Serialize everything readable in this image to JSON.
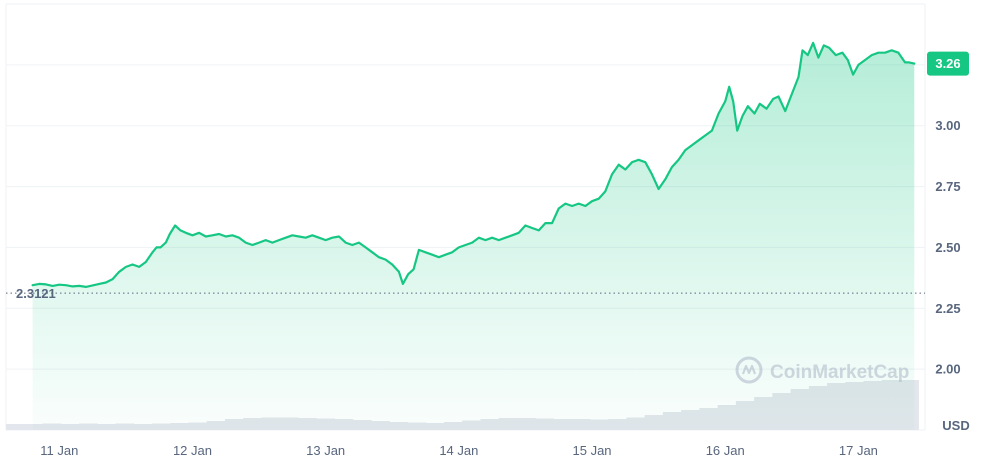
{
  "chart_data": {
    "type": "area",
    "unit_label": "USD",
    "current_value_label": "3.26",
    "reference_value_label": "2.3121",
    "reference_value": 2.3121,
    "watermark_text": "CoinMarketCap",
    "watermark_icon": "coinmarketcap-logo-icon",
    "x_ticks": [
      "11 Jan",
      "12 Jan",
      "13 Jan",
      "14 Jan",
      "15 Jan",
      "16 Jan",
      "17 Jan"
    ],
    "y_ticks": [
      {
        "value": 2.0,
        "label": "2.00"
      },
      {
        "value": 2.25,
        "label": "2.25"
      },
      {
        "value": 2.5,
        "label": "2.50"
      },
      {
        "value": 2.75,
        "label": "2.75"
      },
      {
        "value": 3.0,
        "label": "3.00"
      }
    ],
    "ylim": [
      1.75,
      3.5
    ],
    "xlim": [
      10.6,
      17.5
    ],
    "grid": true,
    "colors": {
      "line": "#16c784",
      "area_top": "#16c784",
      "volume": "#e3e6ec",
      "grid": "#eff2f5",
      "axis_text": "#58667e",
      "ref_line": "#58667e",
      "badge_text": "#ffffff"
    },
    "series": [
      {
        "values": [
          [
            10.8,
            2.345
          ],
          [
            10.85,
            2.35
          ],
          [
            10.9,
            2.348
          ],
          [
            10.95,
            2.342
          ],
          [
            11.0,
            2.347
          ],
          [
            11.05,
            2.345
          ],
          [
            11.1,
            2.34
          ],
          [
            11.15,
            2.342
          ],
          [
            11.2,
            2.338
          ],
          [
            11.25,
            2.344
          ],
          [
            11.3,
            2.35
          ],
          [
            11.35,
            2.356
          ],
          [
            11.4,
            2.37
          ],
          [
            11.45,
            2.4
          ],
          [
            11.5,
            2.42
          ],
          [
            11.55,
            2.43
          ],
          [
            11.6,
            2.42
          ],
          [
            11.65,
            2.44
          ],
          [
            11.7,
            2.48
          ],
          [
            11.73,
            2.5
          ],
          [
            11.76,
            2.5
          ],
          [
            11.8,
            2.52
          ],
          [
            11.83,
            2.555
          ],
          [
            11.87,
            2.59
          ],
          [
            11.91,
            2.57
          ],
          [
            11.95,
            2.56
          ],
          [
            12.0,
            2.55
          ],
          [
            12.05,
            2.56
          ],
          [
            12.1,
            2.545
          ],
          [
            12.15,
            2.55
          ],
          [
            12.2,
            2.555
          ],
          [
            12.25,
            2.545
          ],
          [
            12.3,
            2.55
          ],
          [
            12.35,
            2.54
          ],
          [
            12.4,
            2.52
          ],
          [
            12.45,
            2.51
          ],
          [
            12.5,
            2.52
          ],
          [
            12.55,
            2.53
          ],
          [
            12.6,
            2.52
          ],
          [
            12.65,
            2.53
          ],
          [
            12.7,
            2.54
          ],
          [
            12.75,
            2.55
          ],
          [
            12.8,
            2.545
          ],
          [
            12.85,
            2.54
          ],
          [
            12.9,
            2.55
          ],
          [
            12.95,
            2.54
          ],
          [
            13.0,
            2.53
          ],
          [
            13.05,
            2.54
          ],
          [
            13.1,
            2.545
          ],
          [
            13.15,
            2.52
          ],
          [
            13.2,
            2.51
          ],
          [
            13.25,
            2.52
          ],
          [
            13.3,
            2.5
          ],
          [
            13.35,
            2.48
          ],
          [
            13.4,
            2.46
          ],
          [
            13.45,
            2.45
          ],
          [
            13.5,
            2.43
          ],
          [
            13.55,
            2.4
          ],
          [
            13.58,
            2.35
          ],
          [
            13.62,
            2.39
          ],
          [
            13.66,
            2.41
          ],
          [
            13.7,
            2.49
          ],
          [
            13.75,
            2.48
          ],
          [
            13.8,
            2.47
          ],
          [
            13.85,
            2.46
          ],
          [
            13.9,
            2.47
          ],
          [
            13.95,
            2.48
          ],
          [
            14.0,
            2.5
          ],
          [
            14.05,
            2.51
          ],
          [
            14.1,
            2.52
          ],
          [
            14.15,
            2.54
          ],
          [
            14.2,
            2.53
          ],
          [
            14.25,
            2.54
          ],
          [
            14.3,
            2.53
          ],
          [
            14.35,
            2.54
          ],
          [
            14.4,
            2.55
          ],
          [
            14.45,
            2.56
          ],
          [
            14.5,
            2.59
          ],
          [
            14.55,
            2.58
          ],
          [
            14.6,
            2.57
          ],
          [
            14.65,
            2.6
          ],
          [
            14.7,
            2.6
          ],
          [
            14.75,
            2.66
          ],
          [
            14.8,
            2.68
          ],
          [
            14.85,
            2.67
          ],
          [
            14.9,
            2.68
          ],
          [
            14.95,
            2.67
          ],
          [
            15.0,
            2.69
          ],
          [
            15.05,
            2.7
          ],
          [
            15.1,
            2.73
          ],
          [
            15.15,
            2.8
          ],
          [
            15.2,
            2.84
          ],
          [
            15.25,
            2.82
          ],
          [
            15.3,
            2.85
          ],
          [
            15.35,
            2.86
          ],
          [
            15.4,
            2.85
          ],
          [
            15.45,
            2.8
          ],
          [
            15.5,
            2.74
          ],
          [
            15.55,
            2.78
          ],
          [
            15.6,
            2.83
          ],
          [
            15.65,
            2.86
          ],
          [
            15.7,
            2.9
          ],
          [
            15.75,
            2.92
          ],
          [
            15.8,
            2.94
          ],
          [
            15.85,
            2.96
          ],
          [
            15.9,
            2.98
          ],
          [
            15.95,
            3.05
          ],
          [
            16.0,
            3.1
          ],
          [
            16.03,
            3.16
          ],
          [
            16.06,
            3.1
          ],
          [
            16.09,
            2.98
          ],
          [
            16.13,
            3.04
          ],
          [
            16.17,
            3.08
          ],
          [
            16.22,
            3.05
          ],
          [
            16.26,
            3.09
          ],
          [
            16.31,
            3.07
          ],
          [
            16.36,
            3.11
          ],
          [
            16.4,
            3.12
          ],
          [
            16.45,
            3.06
          ],
          [
            16.5,
            3.13
          ],
          [
            16.55,
            3.2
          ],
          [
            16.58,
            3.31
          ],
          [
            16.62,
            3.29
          ],
          [
            16.66,
            3.34
          ],
          [
            16.7,
            3.28
          ],
          [
            16.74,
            3.33
          ],
          [
            16.78,
            3.32
          ],
          [
            16.83,
            3.29
          ],
          [
            16.88,
            3.3
          ],
          [
            16.92,
            3.27
          ],
          [
            16.96,
            3.21
          ],
          [
            17.0,
            3.25
          ],
          [
            17.05,
            3.27
          ],
          [
            17.1,
            3.29
          ],
          [
            17.15,
            3.3
          ],
          [
            17.2,
            3.3
          ],
          [
            17.25,
            3.31
          ],
          [
            17.3,
            3.3
          ],
          [
            17.35,
            3.26
          ],
          [
            17.38,
            3.26
          ],
          [
            17.42,
            3.255
          ]
        ]
      }
    ],
    "volume": [
      0.12,
      0.12,
      0.13,
      0.12,
      0.13,
      0.12,
      0.13,
      0.12,
      0.13,
      0.14,
      0.15,
      0.18,
      0.22,
      0.24,
      0.25,
      0.25,
      0.24,
      0.23,
      0.22,
      0.2,
      0.18,
      0.16,
      0.15,
      0.14,
      0.16,
      0.19,
      0.22,
      0.24,
      0.24,
      0.23,
      0.22,
      0.22,
      0.21,
      0.22,
      0.25,
      0.3,
      0.36,
      0.4,
      0.44,
      0.5,
      0.58,
      0.66,
      0.74,
      0.82,
      0.88,
      0.94,
      0.96,
      0.98,
      1.0,
      1.0
    ],
    "volume_range": [
      10.6,
      17.45
    ]
  }
}
